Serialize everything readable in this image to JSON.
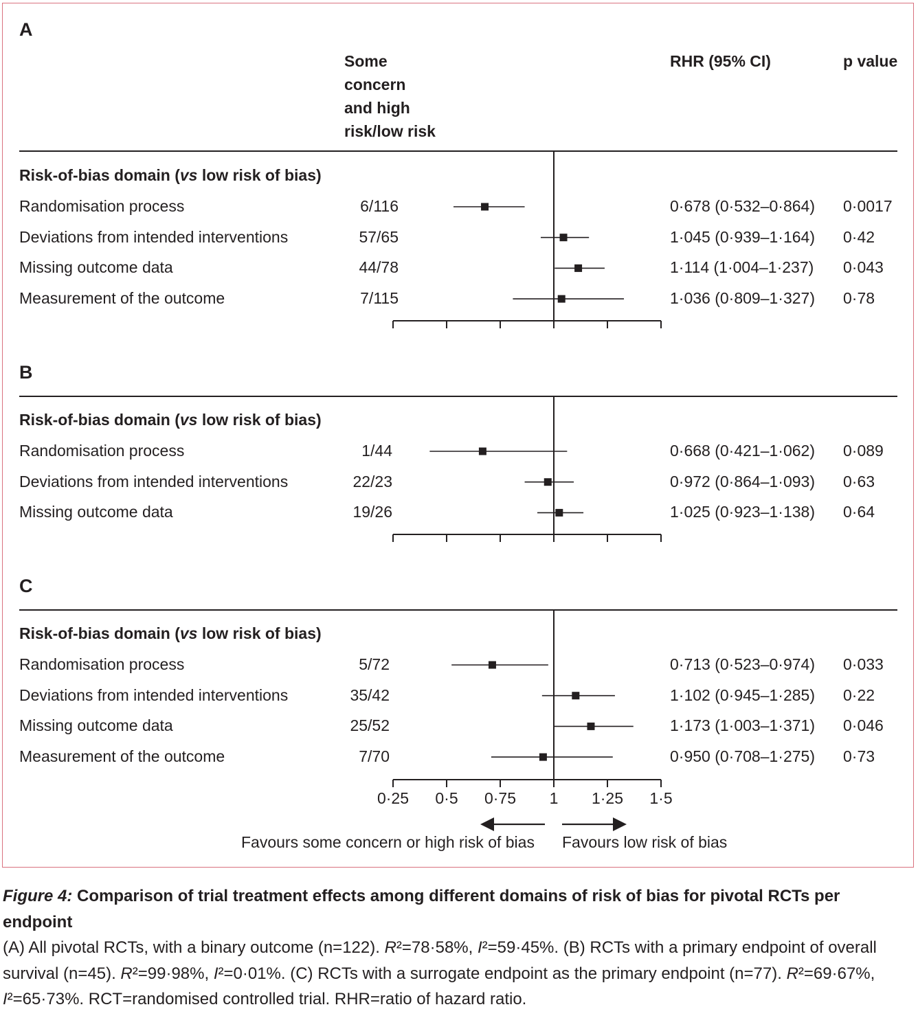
{
  "headers": {
    "counts": [
      "Some",
      "concern",
      "and high",
      "risk/low risk"
    ],
    "rhr": "RHR (95% CI)",
    "pvalue": "p value"
  },
  "section_title_parts": {
    "prefix": "Risk-of-bias domain (",
    "vs": "vs",
    "suffix": " low risk of bias)"
  },
  "axis": {
    "ticks": [
      0.25,
      0.5,
      0.75,
      1,
      1.25,
      1.5
    ],
    "tick_labels": [
      "0·25",
      "0·5",
      "0·75",
      "1",
      "1·25",
      "1·5"
    ],
    "null_line": 1,
    "favours_left": "Favours some concern or high risk of bias",
    "favours_right": "Favours low risk of bias"
  },
  "chart_data": [
    {
      "type": "forest",
      "panel": "A",
      "rows": [
        {
          "label": "Randomisation process",
          "count": "6/116",
          "rhr": 0.678,
          "lo": 0.532,
          "hi": 0.864,
          "ci_text": "0·678 (0·532–0·864)",
          "p": "0·0017"
        },
        {
          "label": "Deviations from intended interventions",
          "count": "57/65",
          "rhr": 1.045,
          "lo": 0.939,
          "hi": 1.164,
          "ci_text": "1·045 (0·939–1·164)",
          "p": "0·42"
        },
        {
          "label": "Missing outcome data",
          "count": "44/78",
          "rhr": 1.114,
          "lo": 1.004,
          "hi": 1.237,
          "ci_text": "1·114 (1·004–1·237)",
          "p": "0·043"
        },
        {
          "label": "Measurement of the outcome",
          "count": "7/115",
          "rhr": 1.036,
          "lo": 0.809,
          "hi": 1.327,
          "ci_text": "1·036 (0·809–1·327)",
          "p": "0·78"
        }
      ]
    },
    {
      "type": "forest",
      "panel": "B",
      "rows": [
        {
          "label": "Randomisation process",
          "count": "1/44",
          "rhr": 0.668,
          "lo": 0.421,
          "hi": 1.062,
          "ci_text": "0·668 (0·421–1·062)",
          "p": "0·089"
        },
        {
          "label": "Deviations from intended interventions",
          "count": "22/23",
          "rhr": 0.972,
          "lo": 0.864,
          "hi": 1.093,
          "ci_text": "0·972 (0·864–1·093)",
          "p": "0·63"
        },
        {
          "label": "Missing outcome data",
          "count": "19/26",
          "rhr": 1.025,
          "lo": 0.923,
          "hi": 1.138,
          "ci_text": "1·025 (0·923–1·138)",
          "p": "0·64"
        }
      ]
    },
    {
      "type": "forest",
      "panel": "C",
      "rows": [
        {
          "label": "Randomisation process",
          "count": "5/72",
          "rhr": 0.713,
          "lo": 0.523,
          "hi": 0.974,
          "ci_text": "0·713 (0·523–0·974)",
          "p": "0·033"
        },
        {
          "label": "Deviations from intended interventions",
          "count": "35/42",
          "rhr": 1.102,
          "lo": 0.945,
          "hi": 1.285,
          "ci_text": "1·102 (0·945–1·285)",
          "p": "0·22"
        },
        {
          "label": "Missing outcome data",
          "count": "25/52",
          "rhr": 1.173,
          "lo": 1.003,
          "hi": 1.371,
          "ci_text": "1·173 (1·003–1·371)",
          "p": "0·046"
        },
        {
          "label": "Measurement of the outcome",
          "count": "7/70",
          "rhr": 0.95,
          "lo": 0.708,
          "hi": 1.275,
          "ci_text": "0·950 (0·708–1·275)",
          "p": "0·73"
        }
      ]
    }
  ],
  "caption": {
    "figure_label": "Figure 4:",
    "title": " Comparison of trial treatment effects among different domains of risk of bias for pivotal RCTs per endpoint",
    "body_parts": [
      {
        "t": "(A) All pivotal RCTs, with a binary outcome (n=122). "
      },
      {
        "t": "R",
        "i": true
      },
      {
        "t": "²=78·58%, "
      },
      {
        "t": "I",
        "i": true
      },
      {
        "t": "²=59·45%. (B) RCTs with a primary endpoint of overall survival (n=45). "
      },
      {
        "t": "R",
        "i": true
      },
      {
        "t": "²=99·98%, "
      },
      {
        "t": "I",
        "i": true
      },
      {
        "t": "²=0·01%. (C) RCTs with a surrogate endpoint as the primary endpoint (n=77). "
      },
      {
        "t": "R",
        "i": true
      },
      {
        "t": "²=69·67%, "
      },
      {
        "t": "I",
        "i": true
      },
      {
        "t": "²=65·73%. RCT=randomised controlled trial. RHR=ratio of hazard ratio."
      }
    ]
  }
}
